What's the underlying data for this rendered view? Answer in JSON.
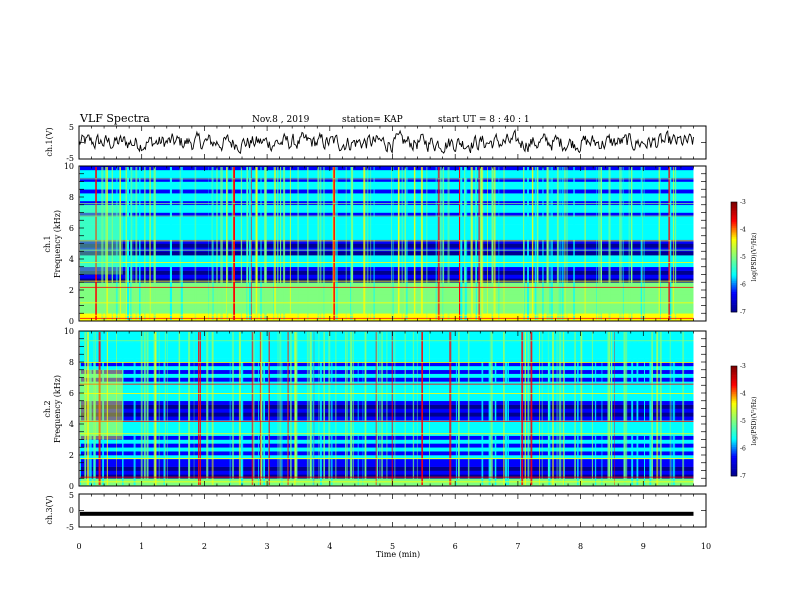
{
  "header": {
    "title": "VLF Spectra",
    "date": "Nov.8 , 2019",
    "station": "station= KAP",
    "start": "start UT = 8 : 40 : 1"
  },
  "chart_data": [
    {
      "type": "line",
      "name": "ch1-waveform",
      "ylabel": "ch.1(V)",
      "ylim": [
        -5,
        5
      ],
      "yticks": [
        "5",
        "-5"
      ],
      "xlim": [
        0,
        10
      ],
      "x_end": 9.8
    },
    {
      "type": "heatmap",
      "name": "ch1-spectrogram",
      "ylabel": "ch.1\nFrequency (kHz)",
      "ylim": [
        0,
        10
      ],
      "yticks": [
        "0",
        "2",
        "4",
        "6",
        "8",
        "10"
      ],
      "xlim": [
        0,
        10
      ],
      "x_end": 9.8,
      "colorbar": {
        "label": "log(PSD)(V²/Hz)",
        "range": [
          -7,
          -3
        ],
        "ticks": [
          "-3",
          "-4",
          "-5",
          "-6",
          "-7"
        ]
      }
    },
    {
      "type": "heatmap",
      "name": "ch2-spectrogram",
      "ylabel": "ch.2\nFrequency (kHz)",
      "ylim": [
        0,
        10
      ],
      "yticks": [
        "0",
        "2",
        "4",
        "6",
        "8",
        "10"
      ],
      "xlim": [
        0,
        10
      ],
      "x_end": 9.8,
      "colorbar": {
        "label": "log(PSD)(V²/Hz)",
        "range": [
          -7,
          -3
        ],
        "ticks": [
          "-3",
          "-4",
          "-5",
          "-6",
          "-7"
        ]
      }
    },
    {
      "type": "line",
      "name": "ch3-waveform",
      "ylabel": "ch.3(V)",
      "ylim": [
        -5,
        5
      ],
      "yticks": [
        "5",
        "0",
        "-5"
      ],
      "value": -1,
      "xlim": [
        0,
        10
      ],
      "x_end": 9.8
    }
  ],
  "xaxis": {
    "label": "Time (min)",
    "ticks": [
      "0",
      "1",
      "2",
      "3",
      "4",
      "5",
      "6",
      "7",
      "8",
      "9",
      "10"
    ]
  },
  "colors": {
    "jet": [
      "#00008f",
      "#0000ff",
      "#00ffff",
      "#7fff7f",
      "#ffff00",
      "#ff0000",
      "#800000"
    ]
  }
}
